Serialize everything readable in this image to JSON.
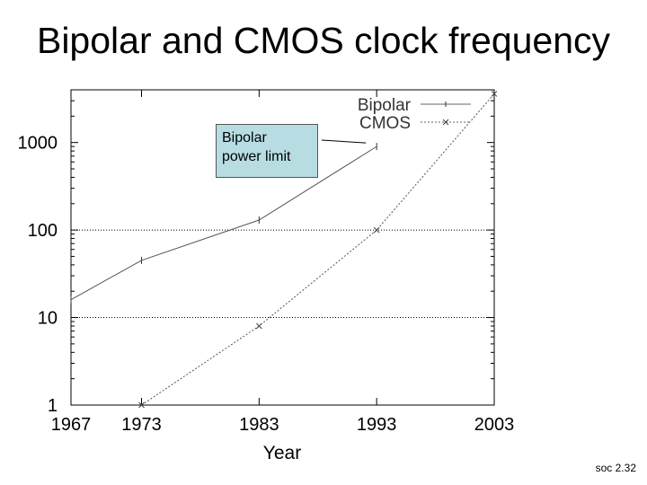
{
  "slide": {
    "title": "Bipolar and CMOS clock frequency",
    "footer": "soc 2.32"
  },
  "chart_data": {
    "type": "line",
    "title": "Bipolar and CMOS clock frequency",
    "xlabel": "Year",
    "ylabel": "",
    "xlim": [
      1967,
      2003
    ],
    "ylim": [
      1,
      4000
    ],
    "yscale": "log",
    "xticks": [
      1967,
      1973,
      1983,
      1993,
      2003
    ],
    "yticks": [
      1,
      10,
      100,
      1000
    ],
    "grid": "horizontal at 10 and 100",
    "legend_position": "top-right",
    "series": [
      {
        "name": "Bipolar",
        "style": "solid",
        "marker": "-",
        "x": [
          1967,
          1973,
          1983,
          1993
        ],
        "y": [
          16,
          45,
          130,
          900
        ]
      },
      {
        "name": "CMOS",
        "style": "dotted",
        "marker": "×",
        "x": [
          1973,
          1983,
          1993,
          2003
        ],
        "y": [
          1,
          8,
          100,
          3600
        ]
      }
    ],
    "annotation": {
      "lines": [
        "Bipolar",
        "power limit"
      ],
      "points_to": {
        "x": 1993,
        "y": 900
      }
    }
  }
}
